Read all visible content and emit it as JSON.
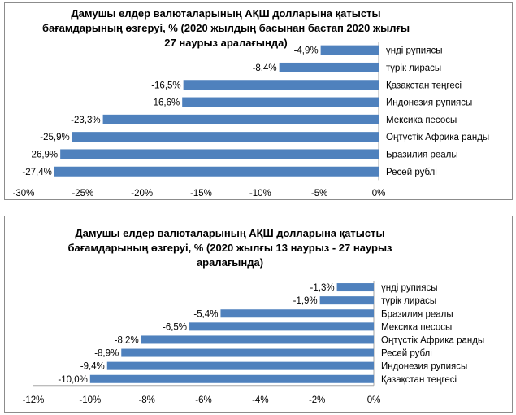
{
  "chart_data": [
    {
      "type": "bar",
      "orientation": "horizontal",
      "title": "Дамушы елдер валюталарының АҚШ долларына қатысты бағамдарының өзгеруі, %  (2020 жылдың басынан бастап 2020 жылғы 27 наурыз аралағында)",
      "categories": [
        "үнді рупиясы",
        "түрік лирасы",
        "Қазақстан теңгесі",
        "Индонезия рупиясы",
        "Мексика песосы",
        "Оңтүстік Африка ранды",
        "Бразилия реалы",
        "Ресей рублі"
      ],
      "values": [
        -4.9,
        -8.4,
        -16.5,
        -16.6,
        -23.3,
        -25.9,
        -26.9,
        -27.4
      ],
      "data_labels": [
        "-4,9%",
        "-8,4%",
        "-16,5%",
        "-16,6%",
        "-23,3%",
        "-25,9%",
        "-26,9%",
        "-27,4%"
      ],
      "xlim": [
        -30,
        0
      ],
      "xticks": [
        -30,
        -25,
        -20,
        -15,
        -10,
        -5,
        0
      ],
      "xtick_labels": [
        "-30%",
        "-25%",
        "-20%",
        "-15%",
        "-10%",
        "-5%",
        "0%"
      ],
      "bar_color": "#4f81bd",
      "grid": false
    },
    {
      "type": "bar",
      "orientation": "horizontal",
      "title": "Дамушы елдер валюталарының АҚШ долларына қатысты бағамдарының өзгеруі, %  (2020 жылғы 13 наурыз - 27 наурыз аралағында)",
      "categories": [
        "үнді рупиясы",
        "түрік лирасы",
        "Бразилия реалы",
        "Мексика песосы",
        "Оңтүстік Африка ранды",
        "Ресей рублі",
        "Индонезия рупиясы",
        "Қазақстан теңгесі"
      ],
      "values": [
        -1.3,
        -1.9,
        -5.4,
        -6.5,
        -8.2,
        -8.9,
        -9.4,
        -10.0
      ],
      "data_labels": [
        "-1,3%",
        "-1,9%",
        "-5,4%",
        "-6,5%",
        "-8,2%",
        "-8,9%",
        "-9,4%",
        "-10,0%"
      ],
      "xlim": [
        -12,
        0
      ],
      "xticks": [
        -12,
        -10,
        -8,
        -6,
        -4,
        -2,
        0
      ],
      "xtick_labels": [
        "-12%",
        "-10%",
        "-8%",
        "-6%",
        "-4%",
        "-2%",
        "0%"
      ],
      "bar_color": "#4f81bd",
      "grid": false
    }
  ]
}
